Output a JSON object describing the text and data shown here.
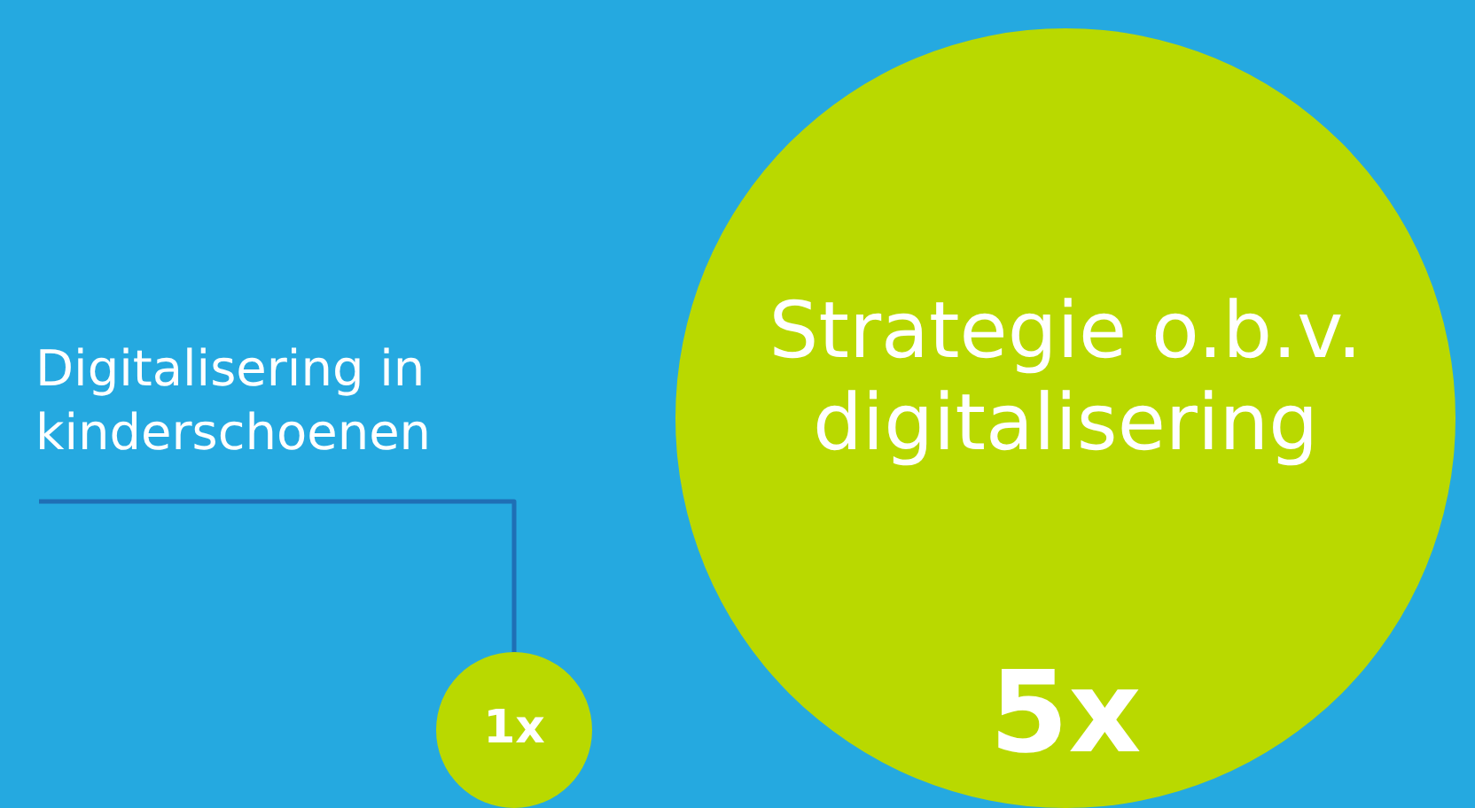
{
  "chart_data": {
    "type": "other",
    "categories": [
      "Digitalisering in kinderschoenen",
      "Strategie o.b.v. digitalisering"
    ],
    "values": [
      1,
      5
    ],
    "value_labels": [
      "1x",
      "5x"
    ],
    "color": "#b9d900"
  }
}
